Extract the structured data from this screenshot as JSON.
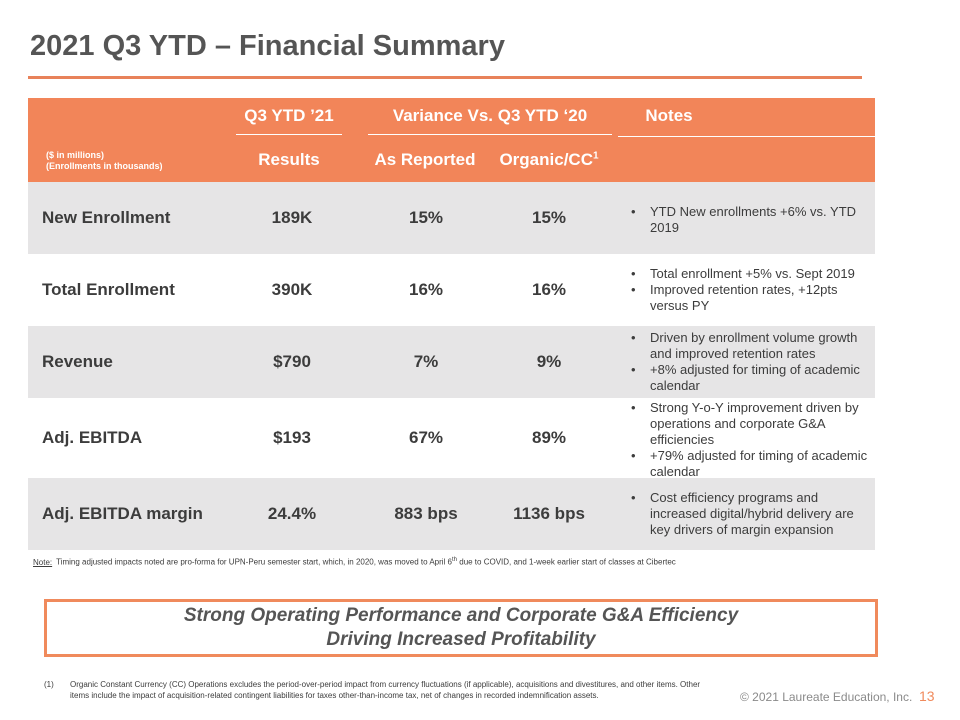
{
  "title": "2021 Q3 YTD – Financial Summary",
  "colors": {
    "accent": "#f28559",
    "row_shade": "#e6e5e6"
  },
  "table": {
    "header": {
      "col_group1": "Q3 YTD ’21",
      "col_group2": "Variance Vs. Q3 YTD ‘20",
      "col_notes": "Notes",
      "units_line1": "($ in millions)",
      "units_line2": "(Enrollments in thousands)",
      "sub_results": "Results",
      "sub_as_reported": "As Reported",
      "sub_organic": "Organic/CC",
      "sub_organic_sup": "1"
    },
    "rows": [
      {
        "metric": "New Enrollment",
        "results": "189K",
        "as_reported": "15%",
        "organic": "15%",
        "notes": [
          "YTD New enrollments +6% vs. YTD 2019"
        ]
      },
      {
        "metric": "Total Enrollment",
        "results": "390K",
        "as_reported": "16%",
        "organic": "16%",
        "notes": [
          "Total enrollment +5% vs. Sept 2019",
          "Improved retention rates, +12pts versus PY"
        ]
      },
      {
        "metric": "Revenue",
        "results": "$790",
        "as_reported": "7%",
        "organic": "9%",
        "notes": [
          "Driven by enrollment volume growth and improved retention rates",
          "+8% adjusted for timing of academic calendar"
        ]
      },
      {
        "metric": "Adj. EBITDA",
        "results": "$193",
        "as_reported": "67%",
        "organic": "89%",
        "notes": [
          "Strong Y-o-Y improvement driven by operations and corporate G&A efficiencies",
          "+79% adjusted for timing of academic calendar"
        ]
      },
      {
        "metric": "Adj. EBITDA margin",
        "results": "24.4%",
        "as_reported": "883 bps",
        "organic": "1136 bps",
        "notes": [
          "Cost efficiency programs and increased digital/hybrid delivery are key drivers of margin expansion"
        ]
      }
    ]
  },
  "note": {
    "label": "Note:",
    "text_before": "Timing adjusted impacts noted are pro-forma for UPN-Peru semester start, which, in 2020, was moved to April 6",
    "text_sup": "th",
    "text_after": " due to COVID, and 1-week earlier start of classes at Cibertec"
  },
  "callout": {
    "line1": "Strong Operating Performance and Corporate G&A Efficiency",
    "line2": "Driving Increased Profitability"
  },
  "footnote": {
    "number": "(1)",
    "text": "Organic Constant Currency (CC) Operations excludes the period-over-period impact from currency fluctuations (if applicable), acquisitions and divestitures, and other items. Other items include the impact of acquisition-related contingent liabilities for taxes other-than-income tax, net of changes in recorded indemnification assets."
  },
  "copyright": "© 2021 Laureate Education, Inc.",
  "page_number": "13"
}
